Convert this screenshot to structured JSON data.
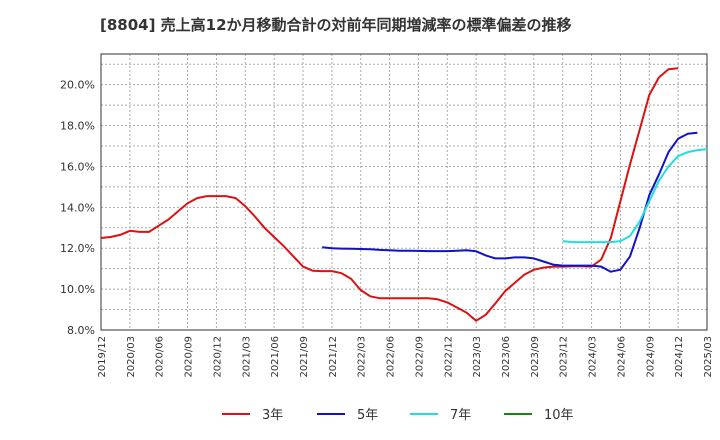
{
  "chart_data": {
    "type": "line",
    "title": "[8804]  売上高12か月移動合計の対前年同期増減率の標準偏差の推移",
    "xlabel": "",
    "ylabel": "",
    "ylim": [
      8.0,
      21.5
    ],
    "y_ticks": [
      "8.0%",
      "10.0%",
      "12.0%",
      "14.0%",
      "16.0%",
      "18.0%",
      "20.0%"
    ],
    "y_tick_values": [
      8,
      10,
      12,
      14,
      16,
      18,
      20
    ],
    "x_ticks": [
      "2019/12",
      "2020/03",
      "2020/06",
      "2020/09",
      "2020/12",
      "2021/03",
      "2021/06",
      "2021/09",
      "2021/12",
      "2022/03",
      "2022/06",
      "2022/09",
      "2022/12",
      "2023/03",
      "2023/06",
      "2023/09",
      "2023/12",
      "2024/03",
      "2024/06",
      "2024/09",
      "2024/12",
      "2025/03"
    ],
    "x_start": "2019/12",
    "grid": true,
    "legend_position": "bottom",
    "series": [
      {
        "name": "3年",
        "color": "#dd1111",
        "start_index": 0,
        "values": [
          12.5,
          12.55,
          12.65,
          12.85,
          12.8,
          12.8,
          13.1,
          13.4,
          13.8,
          14.2,
          14.45,
          14.55,
          14.55,
          14.55,
          14.45,
          14.05,
          13.55,
          13.0,
          12.55,
          12.1,
          11.6,
          11.1,
          10.9,
          10.88,
          10.88,
          10.78,
          10.5,
          9.95,
          9.65,
          9.55,
          9.55,
          9.55,
          9.55,
          9.55,
          9.55,
          9.5,
          9.35,
          9.1,
          8.85,
          8.45,
          8.75,
          9.3,
          9.9,
          10.3,
          10.7,
          10.95,
          11.05,
          11.1,
          11.1,
          11.12,
          11.12,
          11.1,
          11.45,
          12.5,
          14.3,
          16.1,
          17.8,
          19.5,
          20.35,
          20.75,
          20.8
        ]
      },
      {
        "name": "5年",
        "color": "#1111cc",
        "start_index": 23,
        "values": [
          12.05,
          12.0,
          11.98,
          11.97,
          11.96,
          11.95,
          11.92,
          11.9,
          11.88,
          11.88,
          11.87,
          11.86,
          11.86,
          11.86,
          11.88,
          11.9,
          11.85,
          11.65,
          11.5,
          11.5,
          11.55,
          11.55,
          11.5,
          11.35,
          11.2,
          11.15,
          11.15,
          11.15,
          11.15,
          11.1,
          10.85,
          10.95,
          11.6,
          13.0,
          14.6,
          15.6,
          16.7,
          17.35,
          17.6,
          17.65
        ]
      },
      {
        "name": "7年",
        "color": "#22dddd",
        "start_index": 48,
        "values": [
          12.35,
          12.3,
          12.3,
          12.3,
          12.3,
          12.3,
          12.35,
          12.6,
          13.3,
          14.3,
          15.3,
          16.0,
          16.5,
          16.7,
          16.8,
          16.85
        ]
      },
      {
        "name": "10年",
        "color": "#118811",
        "start_index": 0,
        "values": []
      }
    ]
  }
}
